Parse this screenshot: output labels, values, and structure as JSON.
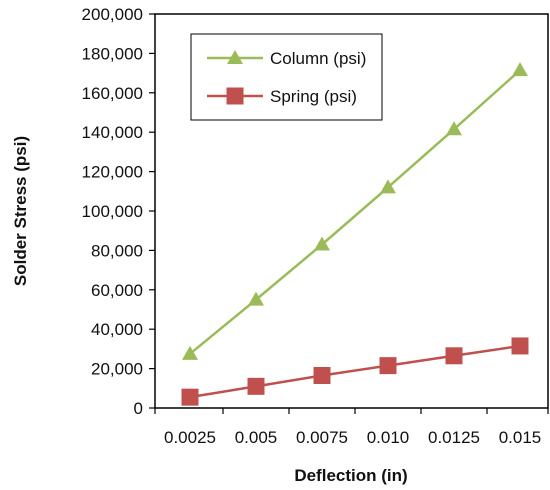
{
  "chart_data": {
    "type": "line",
    "title": "",
    "xlabel": "Deflection (in)",
    "ylabel": "Solder Stress (psi)",
    "x_tick_labels": [
      "0.0025",
      "0.005",
      "0.0075",
      "0.010",
      "0.0125",
      "0.015"
    ],
    "y_tick_labels": [
      "0",
      "20,000",
      "40,000",
      "60,000",
      "80,000",
      "100,000",
      "120,000",
      "140,000",
      "160,000",
      "180,000",
      "200,000"
    ],
    "ylim": [
      0,
      200000
    ],
    "grid": false,
    "legend_position": "top-left",
    "series": [
      {
        "name": "Column (psi)",
        "color": "#9bbb59",
        "marker": "triangle",
        "x": [
          0.0025,
          0.005,
          0.0075,
          0.01,
          0.0125,
          0.015
        ],
        "values": [
          27500,
          55000,
          83000,
          112000,
          141500,
          171500
        ]
      },
      {
        "name": "Spring (psi)",
        "color": "#c0504d",
        "marker": "square",
        "x": [
          0.0025,
          0.005,
          0.0075,
          0.01,
          0.0125,
          0.015
        ],
        "values": [
          5500,
          11000,
          16500,
          21500,
          26500,
          31500
        ]
      }
    ]
  }
}
